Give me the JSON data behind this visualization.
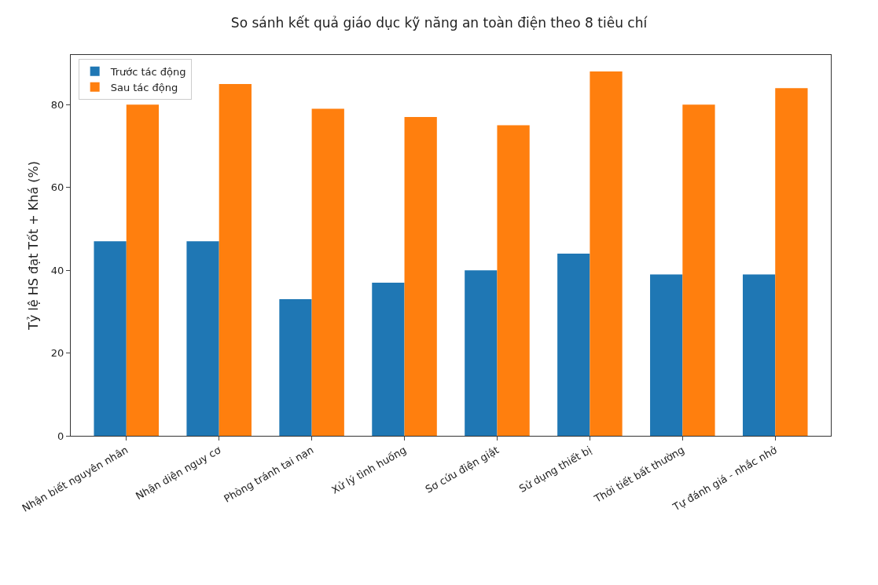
{
  "chart_data": {
    "type": "bar",
    "title": "So sánh kết quả giáo dục kỹ năng an toàn điện theo 8 tiêu chí",
    "ylabel": "Tỷ lệ HS đạt Tốt + Khá (%)",
    "categories": [
      "Nhận biết nguyên nhân",
      "Nhận diện nguy cơ",
      "Phòng tránh tai nạn",
      "Xử lý tình huống",
      "Sơ cứu điện giật",
      "Sử dụng thiết bị",
      "Thời tiết bất thường",
      "Tự đánh giá - nhắc nhở"
    ],
    "series": [
      {
        "name": "Trước tác động",
        "color": "#1f77b4",
        "values": [
          47,
          47,
          33,
          37,
          40,
          44,
          39,
          39
        ]
      },
      {
        "name": "Sau tác động",
        "color": "#ff7f0e",
        "values": [
          80,
          85,
          79,
          77,
          75,
          88,
          80,
          84
        ]
      }
    ],
    "ylim": [
      0,
      92
    ],
    "yticks": [
      0,
      20,
      40,
      60,
      80
    ],
    "grid": false,
    "legend": "top left"
  }
}
